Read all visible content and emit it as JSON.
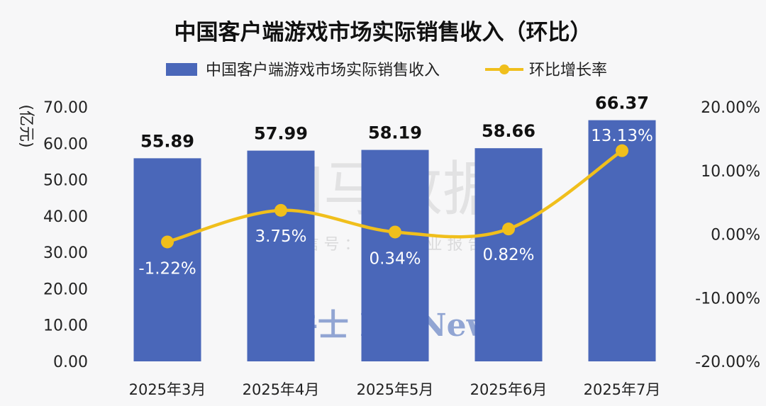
{
  "chart_data": {
    "type": "bar+line",
    "title": "中国客户端游戏市场实际销售收入（环比）",
    "ylabel": "(亿元)",
    "categories": [
      "2025年3月",
      "2025年4月",
      "2025年5月",
      "2025年6月",
      "2025年7月"
    ],
    "bar_series": {
      "name": "中国客户端游戏市场实际销售收入",
      "values": [
        55.89,
        57.99,
        58.19,
        58.66,
        66.37
      ],
      "labels": [
        "55.89",
        "57.99",
        "58.19",
        "58.66",
        "66.37"
      ],
      "color": "#4a67b9"
    },
    "line_series": {
      "name": "环比增长率",
      "values": [
        -1.22,
        3.75,
        0.34,
        0.82,
        13.13
      ],
      "labels": [
        "-1.22%",
        "3.75%",
        "0.34%",
        "0.82%",
        "13.13%"
      ],
      "color": "#f0bf1c"
    },
    "y_left": {
      "range": [
        0,
        70
      ],
      "ticks": [
        "0.00",
        "10.00",
        "20.00",
        "30.00",
        "40.00",
        "50.00",
        "60.00",
        "70.00"
      ]
    },
    "y_right": {
      "range": [
        -20,
        20
      ],
      "ticks": [
        "-20.00%",
        "-10.00%",
        "0.00%",
        "10.00%",
        "20.00%"
      ]
    },
    "legend_position": "top",
    "grid": false
  },
  "watermark": {
    "main": "伽马数据",
    "sub": "微 信 号 ： 游 戏 产 业 报 告",
    "brand": "鞭牛士 BiaNews"
  }
}
